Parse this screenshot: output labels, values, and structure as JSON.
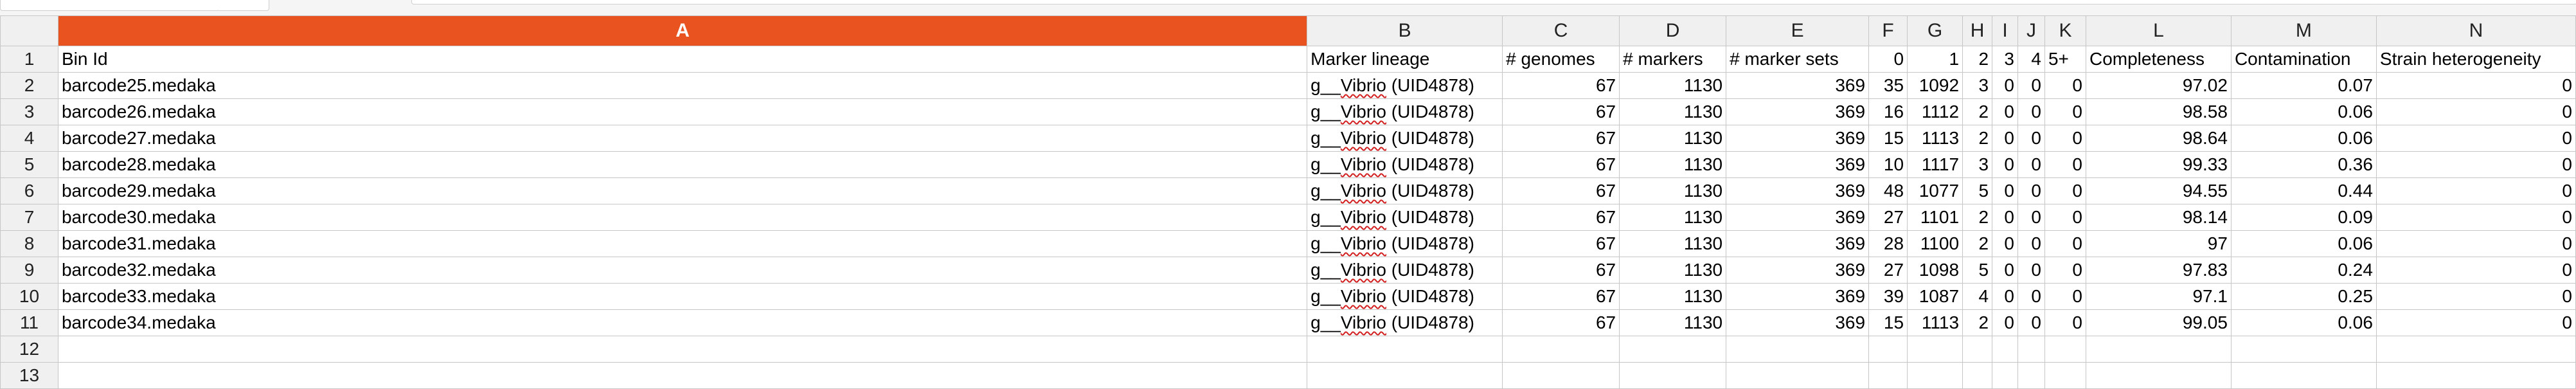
{
  "columns": [
    "A",
    "B",
    "C",
    "D",
    "E",
    "F",
    "G",
    "H",
    "I",
    "J",
    "K",
    "L",
    "M",
    "N"
  ],
  "active_column": "A",
  "active_color": "#e8531f",
  "row_numbers": [
    "1",
    "2",
    "3",
    "4",
    "5",
    "6",
    "7",
    "8",
    "9",
    "10",
    "11",
    "12",
    "13"
  ],
  "header_row": [
    "Bin Id",
    "Marker lineage",
    "# genomes",
    "# markers",
    "# marker sets",
    "0",
    "1",
    "2",
    "3",
    "4",
    "5+",
    "Completeness",
    "Contamination",
    "Strain heterogeneity"
  ],
  "rows": [
    {
      "bin": "barcode25.medaka",
      "lineage_prefix": "g__",
      "lineage_word": "Vibrio",
      "lineage_suffix": " (UID4878)",
      "c": "67",
      "d": "1130",
      "e": "369",
      "f": "35",
      "g": "1092",
      "h": "3",
      "i": "0",
      "j": "0",
      "k": "0",
      "l": "97.02",
      "m": "0.07",
      "n": "0"
    },
    {
      "bin": "barcode26.medaka",
      "lineage_prefix": "g__",
      "lineage_word": "Vibrio",
      "lineage_suffix": " (UID4878)",
      "c": "67",
      "d": "1130",
      "e": "369",
      "f": "16",
      "g": "1112",
      "h": "2",
      "i": "0",
      "j": "0",
      "k": "0",
      "l": "98.58",
      "m": "0.06",
      "n": "0"
    },
    {
      "bin": "barcode27.medaka",
      "lineage_prefix": "g__",
      "lineage_word": "Vibrio",
      "lineage_suffix": " (UID4878)",
      "c": "67",
      "d": "1130",
      "e": "369",
      "f": "15",
      "g": "1113",
      "h": "2",
      "i": "0",
      "j": "0",
      "k": "0",
      "l": "98.64",
      "m": "0.06",
      "n": "0"
    },
    {
      "bin": "barcode28.medaka",
      "lineage_prefix": "g__",
      "lineage_word": "Vibrio",
      "lineage_suffix": " (UID4878)",
      "c": "67",
      "d": "1130",
      "e": "369",
      "f": "10",
      "g": "1117",
      "h": "3",
      "i": "0",
      "j": "0",
      "k": "0",
      "l": "99.33",
      "m": "0.36",
      "n": "0"
    },
    {
      "bin": "barcode29.medaka",
      "lineage_prefix": "g__",
      "lineage_word": "Vibrio",
      "lineage_suffix": " (UID4878)",
      "c": "67",
      "d": "1130",
      "e": "369",
      "f": "48",
      "g": "1077",
      "h": "5",
      "i": "0",
      "j": "0",
      "k": "0",
      "l": "94.55",
      "m": "0.44",
      "n": "0"
    },
    {
      "bin": "barcode30.medaka",
      "lineage_prefix": "g__",
      "lineage_word": "Vibrio",
      "lineage_suffix": " (UID4878)",
      "c": "67",
      "d": "1130",
      "e": "369",
      "f": "27",
      "g": "1101",
      "h": "2",
      "i": "0",
      "j": "0",
      "k": "0",
      "l": "98.14",
      "m": "0.09",
      "n": "0"
    },
    {
      "bin": "barcode31.medaka",
      "lineage_prefix": "g__",
      "lineage_word": "Vibrio",
      "lineage_suffix": " (UID4878)",
      "c": "67",
      "d": "1130",
      "e": "369",
      "f": "28",
      "g": "1100",
      "h": "2",
      "i": "0",
      "j": "0",
      "k": "0",
      "l": "97",
      "m": "0.06",
      "n": "0"
    },
    {
      "bin": "barcode32.medaka",
      "lineage_prefix": "g__",
      "lineage_word": "Vibrio",
      "lineage_suffix": " (UID4878)",
      "c": "67",
      "d": "1130",
      "e": "369",
      "f": "27",
      "g": "1098",
      "h": "5",
      "i": "0",
      "j": "0",
      "k": "0",
      "l": "97.83",
      "m": "0.24",
      "n": "0"
    },
    {
      "bin": "barcode33.medaka",
      "lineage_prefix": "g__",
      "lineage_word": "Vibrio",
      "lineage_suffix": " (UID4878)",
      "c": "67",
      "d": "1130",
      "e": "369",
      "f": "39",
      "g": "1087",
      "h": "4",
      "i": "0",
      "j": "0",
      "k": "0",
      "l": "97.1",
      "m": "0.25",
      "n": "0"
    },
    {
      "bin": "barcode34.medaka",
      "lineage_prefix": "g__",
      "lineage_word": "Vibrio",
      "lineage_suffix": " (UID4878)",
      "c": "67",
      "d": "1130",
      "e": "369",
      "f": "15",
      "g": "1113",
      "h": "2",
      "i": "0",
      "j": "0",
      "k": "0",
      "l": "99.05",
      "m": "0.06",
      "n": "0"
    }
  ]
}
